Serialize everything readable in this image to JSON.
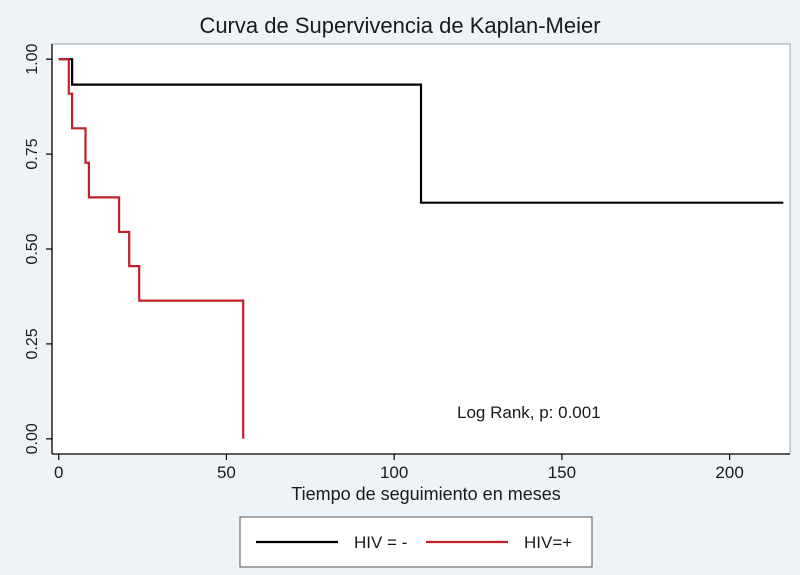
{
  "chart_data": {
    "type": "line",
    "step": true,
    "title": "Curva de Supervivencia de Kaplan-Meier",
    "xlabel": "Tiempo de seguimiento en meses",
    "ylabel": "",
    "xlim": [
      -2,
      218
    ],
    "ylim": [
      -0.04,
      1.04
    ],
    "x_ticks": [
      0,
      50,
      100,
      150,
      200
    ],
    "x_tick_labels": [
      "0",
      "50",
      "100",
      "150",
      "200"
    ],
    "y_ticks": [
      0,
      0.25,
      0.5,
      0.75,
      1.0
    ],
    "y_tick_labels": [
      "0.00",
      "0.25",
      "0.50",
      "0.75",
      "1.00"
    ],
    "grid": false,
    "legend_position": "bottom",
    "annotation": "Log Rank, p: 0.001",
    "series": [
      {
        "name": "HIV = -",
        "color": "#000000",
        "x": [
          0,
          4,
          108,
          216
        ],
        "y": [
          1.0,
          0.933,
          0.622,
          0.622
        ]
      },
      {
        "name": "HIV=+",
        "color": "#c0202a",
        "x": [
          0,
          3,
          4,
          8,
          9,
          18,
          21,
          24,
          55,
          55
        ],
        "y": [
          1.0,
          0.909,
          0.818,
          0.727,
          0.636,
          0.545,
          0.455,
          0.364,
          0.364,
          0.0
        ]
      }
    ]
  }
}
